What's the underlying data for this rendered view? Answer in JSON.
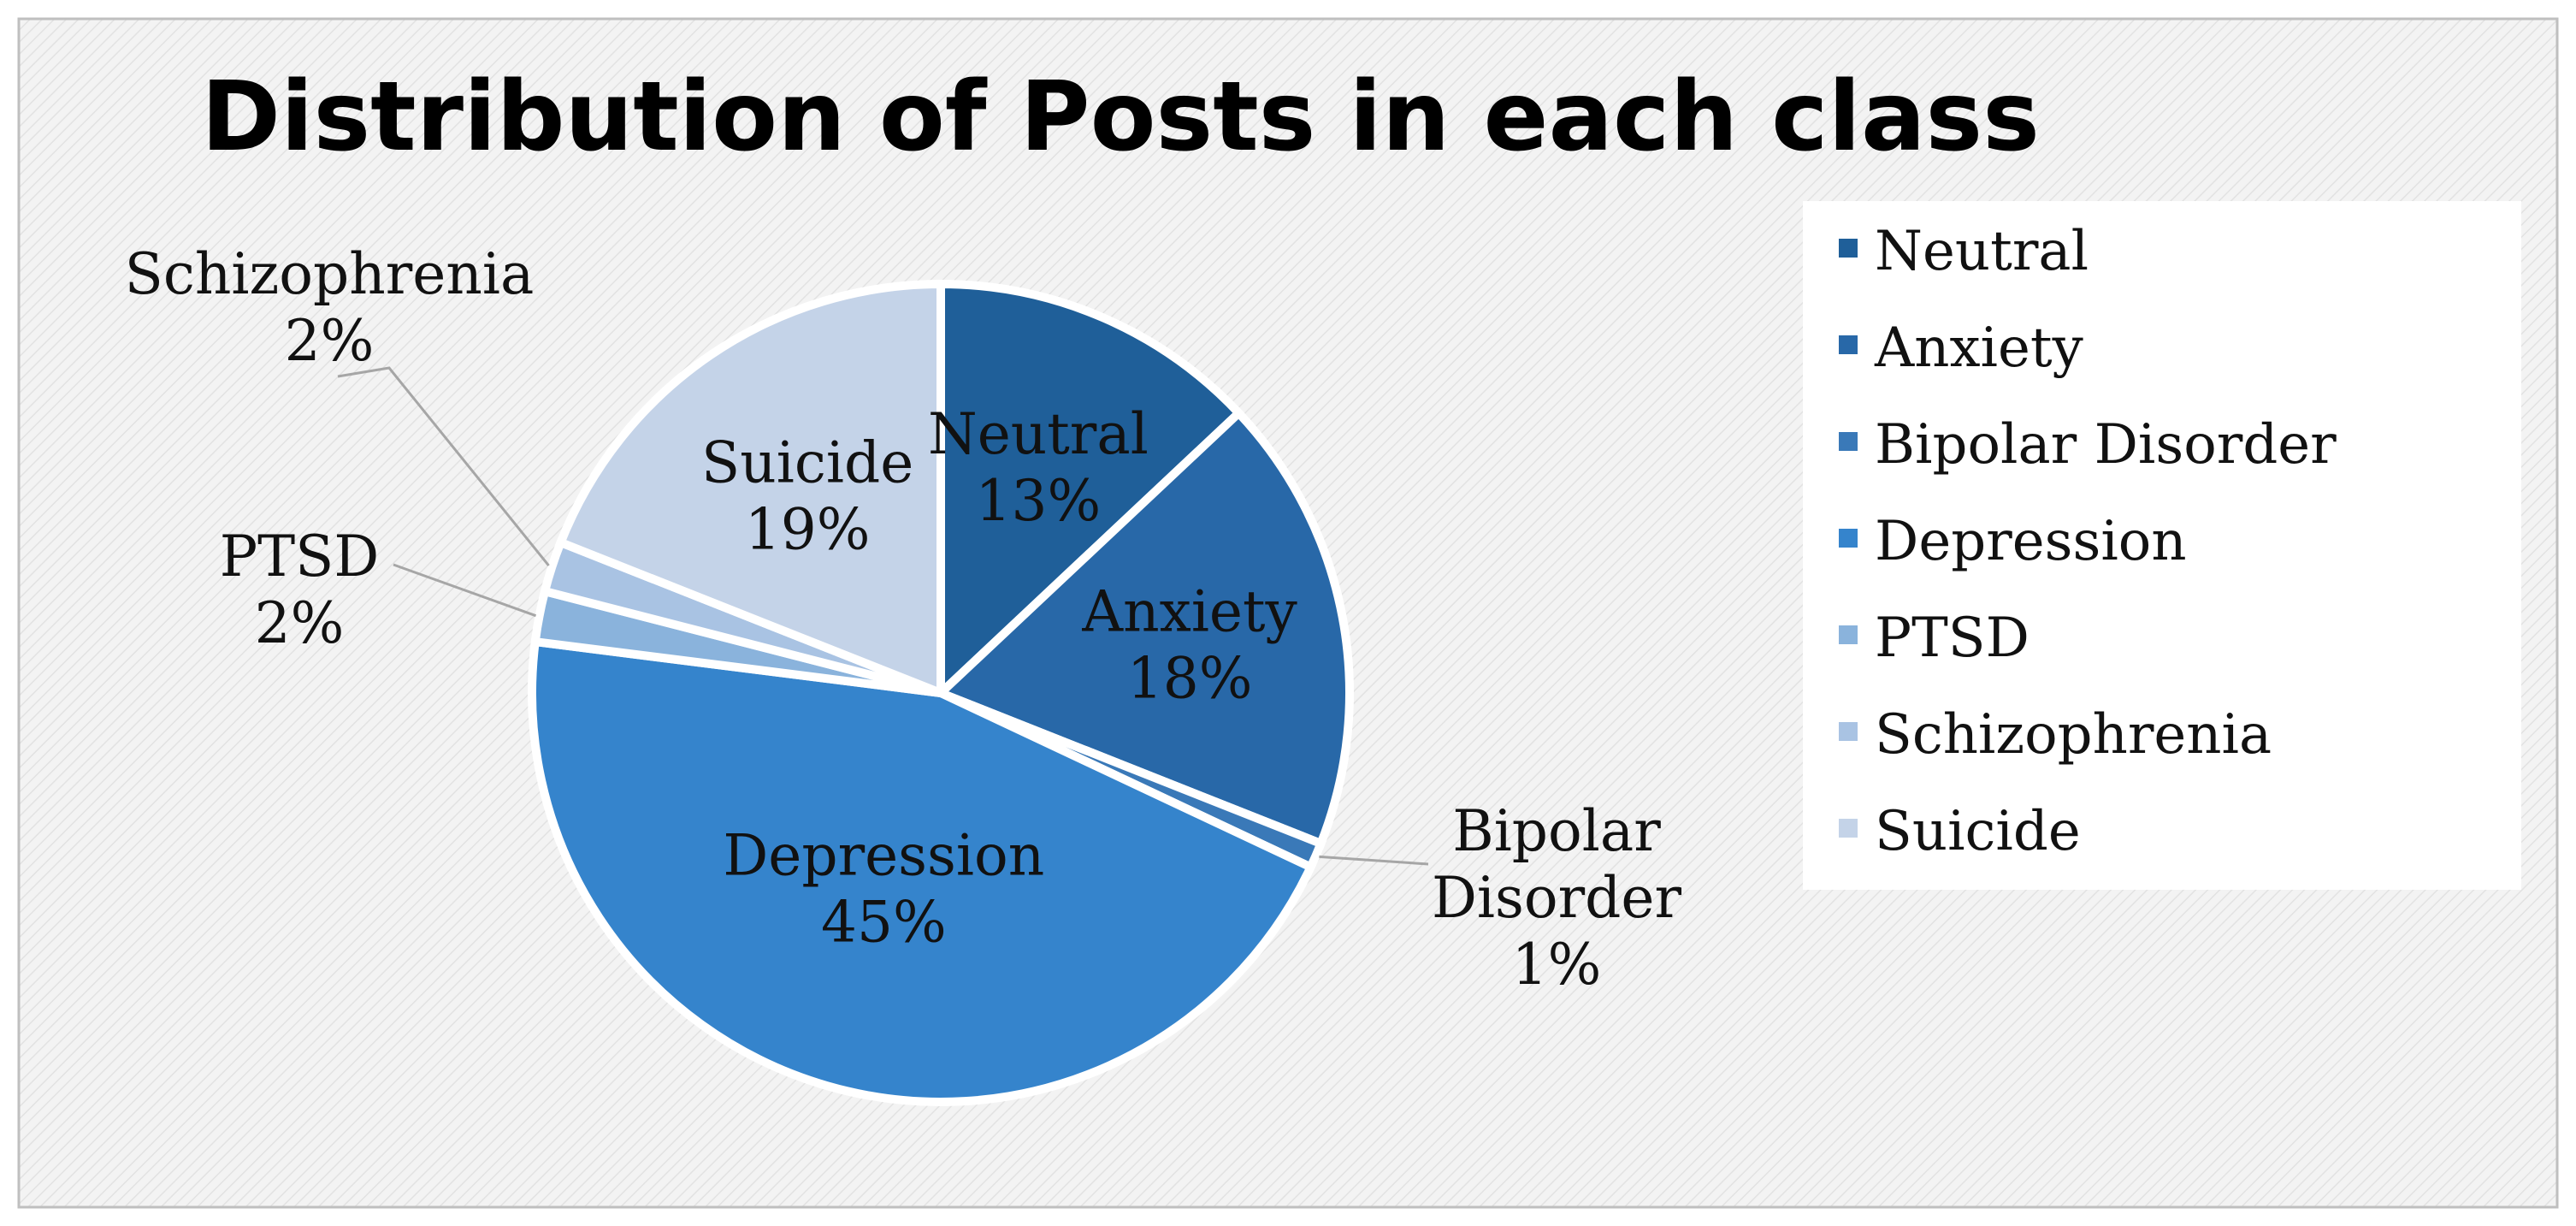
{
  "chart_data": {
    "type": "pie",
    "title": "Distribution of Posts in each class",
    "legend_position": "right",
    "slices": [
      {
        "label": "Neutral",
        "value": 13,
        "value_label": "13%",
        "color": "#1f5f99"
      },
      {
        "label": "Anxiety",
        "value": 18,
        "value_label": "18%",
        "color": "#2868a8"
      },
      {
        "label": "Bipolar Disorder",
        "value": 1,
        "value_label": "1%",
        "color": "#3a79b8"
      },
      {
        "label": "Depression",
        "value": 45,
        "value_label": "45%",
        "color": "#3584cc"
      },
      {
        "label": "PTSD",
        "value": 2,
        "value_label": "2%",
        "color": "#8ab3dc"
      },
      {
        "label": "Schizophrenia",
        "value": 2,
        "value_label": "2%",
        "color": "#a9c3e3"
      },
      {
        "label": "Suicide",
        "value": 19,
        "value_label": "19%",
        "color": "#c4d3e8"
      }
    ]
  }
}
